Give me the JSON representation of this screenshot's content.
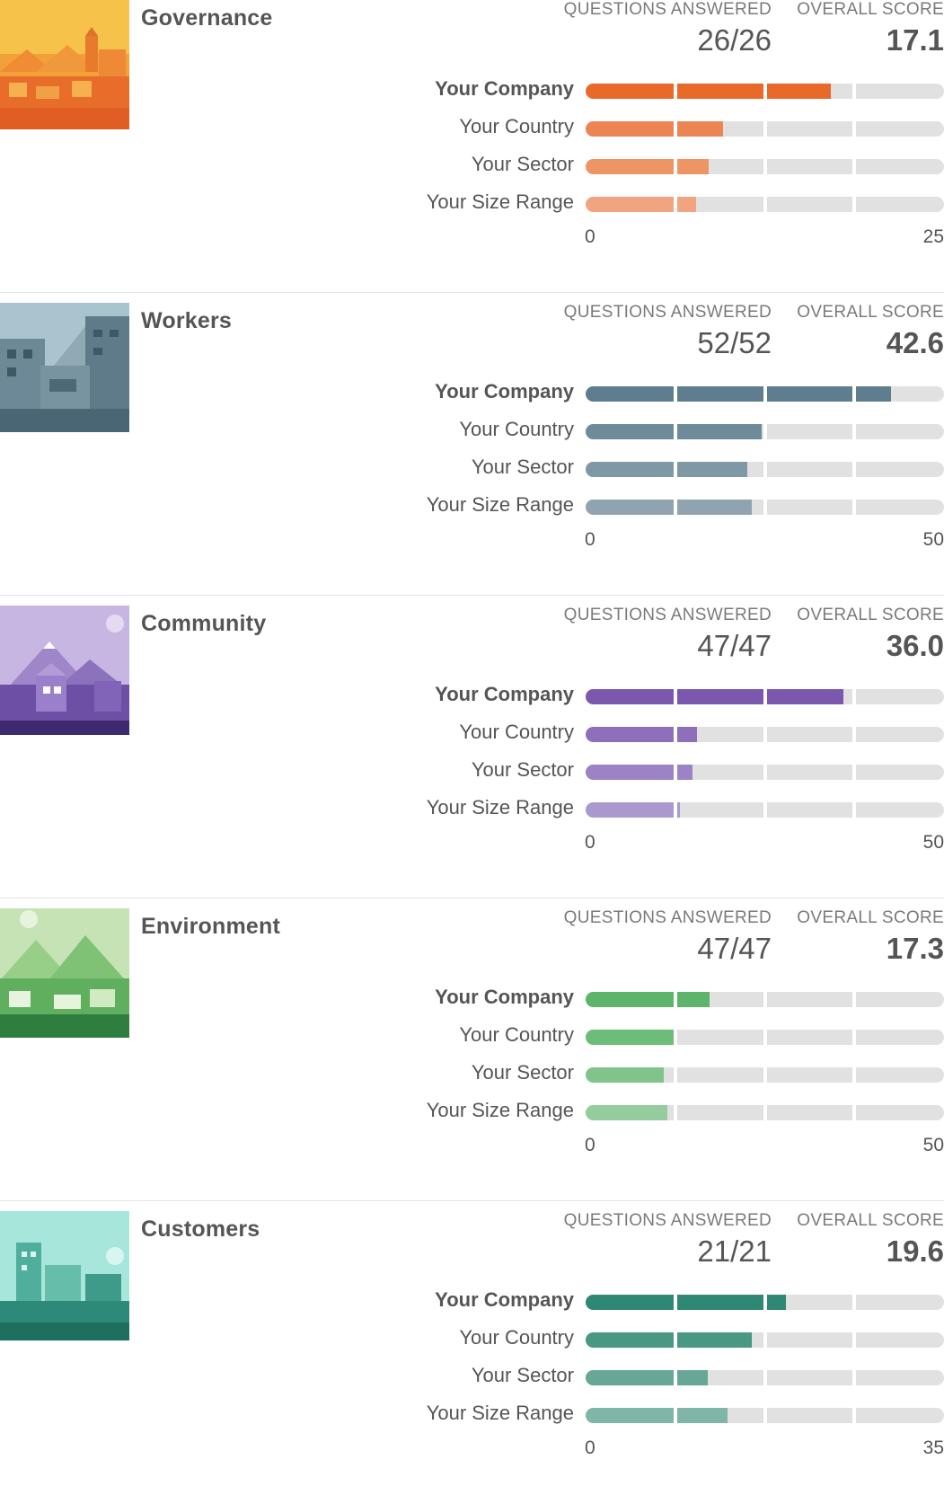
{
  "labels": {
    "questions_answered": "QUESTIONS ANSWERED",
    "overall_score": "OVERALL SCORE"
  },
  "sections": [
    {
      "title": "Governance",
      "image": "governance-illustration",
      "questions": "26/26",
      "score": "17.1",
      "axis_min": "0",
      "axis_max": "25",
      "max_value": 25,
      "colors": [
        "#e8692a",
        "#ec8554",
        "#ee9566",
        "#f0a47f"
      ],
      "rows": [
        {
          "label": "Your Company",
          "value": 17.1
        },
        {
          "label": "Your Country",
          "value": 9.6
        },
        {
          "label": "Your Sector",
          "value": 8.6
        },
        {
          "label": "Your Size Range",
          "value": 7.7
        }
      ]
    },
    {
      "title": "Workers",
      "image": "workers-illustration",
      "questions": "52/52",
      "score": "42.6",
      "axis_min": "0",
      "axis_max": "50",
      "max_value": 50,
      "colors": [
        "#5e7d8e",
        "#6f8b9a",
        "#7f98a6",
        "#8fa4b0"
      ],
      "rows": [
        {
          "label": "Your Company",
          "value": 42.6
        },
        {
          "label": "Your Country",
          "value": 24.6
        },
        {
          "label": "Your Sector",
          "value": 22.6
        },
        {
          "label": "Your Size Range",
          "value": 23.2
        }
      ]
    },
    {
      "title": "Community",
      "image": "community-illustration",
      "questions": "47/47",
      "score": "36.0",
      "axis_min": "0",
      "axis_max": "50",
      "max_value": 50,
      "colors": [
        "#7b58ad",
        "#8e6fbb",
        "#9c83c6",
        "#ab98cf"
      ],
      "rows": [
        {
          "label": "Your Company",
          "value": 36.0
        },
        {
          "label": "Your Country",
          "value": 15.6
        },
        {
          "label": "Your Sector",
          "value": 14.9
        },
        {
          "label": "Your Size Range",
          "value": 13.2
        }
      ]
    },
    {
      "title": "Environment",
      "image": "environment-illustration",
      "questions": "47/47",
      "score": "17.3",
      "axis_min": "0",
      "axis_max": "50",
      "max_value": 50,
      "colors": [
        "#5cb56a",
        "#6bbd79",
        "#80c48b",
        "#95cc9d"
      ],
      "rows": [
        {
          "label": "Your Company",
          "value": 17.3
        },
        {
          "label": "Your Country",
          "value": 12.5
        },
        {
          "label": "Your Sector",
          "value": 10.9
        },
        {
          "label": "Your Size Range",
          "value": 11.4
        }
      ]
    },
    {
      "title": "Customers",
      "image": "customers-illustration",
      "questions": "21/21",
      "score": "19.6",
      "axis_min": "0",
      "axis_max": "35",
      "max_value": 35,
      "colors": [
        "#2e8873",
        "#4a9784",
        "#67a796",
        "#80b6a7"
      ],
      "rows": [
        {
          "label": "Your Company",
          "value": 19.6
        },
        {
          "label": "Your Country",
          "value": 16.2
        },
        {
          "label": "Your Sector",
          "value": 11.9
        },
        {
          "label": "Your Size Range",
          "value": 13.9
        }
      ]
    }
  ]
}
